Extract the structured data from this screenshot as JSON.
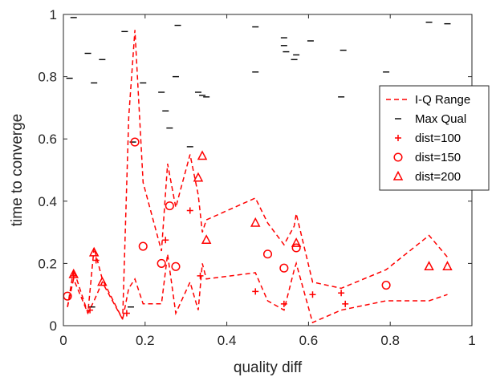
{
  "chart_data": {
    "type": "scatter",
    "title": "",
    "xlabel": "quality diff",
    "ylabel": "time to converge",
    "xlim": [
      0,
      1
    ],
    "ylim": [
      0,
      1
    ],
    "x_ticks": [
      "0",
      "0.2",
      "0.4",
      "0.6",
      "0.8",
      "1"
    ],
    "y_ticks": [
      "0",
      "0.2",
      "0.4",
      "0.6",
      "0.8",
      "1"
    ],
    "grid": false,
    "legend_position": "right",
    "colors": {
      "red": "#ff0000",
      "black": "#000000",
      "axis": "#262626"
    },
    "series": [
      {
        "name": "I-Q Range",
        "style": "dashed-line",
        "color": "#ff0000",
        "lines": [
          {
            "x": [
              0.01,
              0.025,
              0.06,
              0.075,
              0.095,
              0.145,
              0.16,
              0.175,
              0.195,
              0.24,
              0.255,
              0.275,
              0.31,
              0.33,
              0.34,
              0.35,
              0.47,
              0.5,
              0.54,
              0.565,
              0.57,
              0.61,
              0.68,
              0.79,
              0.895,
              0.94
            ],
            "y": [
              0.06,
              0.18,
              0.04,
              0.25,
              0.15,
              0.02,
              0.67,
              0.95,
              0.46,
              0.24,
              0.52,
              0.38,
              0.55,
              0.42,
              0.3,
              0.34,
              0.41,
              0.33,
              0.26,
              0.32,
              0.36,
              0.14,
              0.12,
              0.18,
              0.29,
              0.22
            ]
          },
          {
            "x": [
              0.01,
              0.025,
              0.06,
              0.075,
              0.095,
              0.145,
              0.16,
              0.175,
              0.195,
              0.24,
              0.255,
              0.275,
              0.31,
              0.33,
              0.34,
              0.35,
              0.47,
              0.5,
              0.54,
              0.565,
              0.57,
              0.61,
              0.68,
              0.79,
              0.895,
              0.94
            ],
            "y": [
              0.06,
              0.15,
              0.04,
              0.08,
              0.14,
              0.02,
              0.12,
              0.15,
              0.07,
              0.07,
              0.23,
              0.04,
              0.14,
              0.05,
              0.2,
              0.15,
              0.17,
              0.08,
              0.05,
              0.18,
              0.2,
              0.01,
              0.05,
              0.08,
              0.08,
              0.1
            ]
          }
        ]
      },
      {
        "name": "Max Qual",
        "marker": "hline",
        "color": "#000000",
        "x": [
          0.015,
          0.025,
          0.06,
          0.07,
          0.075,
          0.095,
          0.15,
          0.165,
          0.17,
          0.195,
          0.24,
          0.25,
          0.26,
          0.275,
          0.28,
          0.31,
          0.33,
          0.34,
          0.35,
          0.47,
          0.47,
          0.54,
          0.54,
          0.545,
          0.565,
          0.57,
          0.605,
          0.68,
          0.685,
          0.79,
          0.895,
          0.94
        ],
        "y": [
          0.795,
          0.99,
          0.875,
          0.06,
          0.78,
          0.855,
          0.945,
          0.06,
          0.59,
          0.78,
          0.75,
          0.69,
          0.635,
          0.8,
          0.965,
          0.575,
          0.75,
          0.74,
          0.735,
          0.96,
          0.815,
          0.9,
          0.925,
          0.88,
          0.855,
          0.87,
          0.915,
          0.735,
          0.885,
          0.815,
          0.975,
          0.97
        ]
      },
      {
        "name": "dist=100",
        "marker": "plus",
        "color": "#ff0000",
        "x": [
          0.025,
          0.065,
          0.08,
          0.155,
          0.25,
          0.31,
          0.335,
          0.47,
          0.54,
          0.61,
          0.68,
          0.69
        ],
        "y": [
          0.16,
          0.05,
          0.21,
          0.04,
          0.275,
          0.37,
          0.16,
          0.11,
          0.07,
          0.1,
          0.105,
          0.07
        ]
      },
      {
        "name": "dist=150",
        "marker": "circle",
        "color": "#ff0000",
        "x": [
          0.01,
          0.175,
          0.195,
          0.24,
          0.26,
          0.275,
          0.5,
          0.54,
          0.57,
          0.79
        ],
        "y": [
          0.095,
          0.59,
          0.255,
          0.2,
          0.385,
          0.19,
          0.23,
          0.185,
          0.25,
          0.13
        ]
      },
      {
        "name": "dist=200",
        "marker": "triangle",
        "color": "#ff0000",
        "x": [
          0.025,
          0.075,
          0.095,
          0.33,
          0.34,
          0.35,
          0.47,
          0.57,
          0.895,
          0.94
        ],
        "y": [
          0.165,
          0.235,
          0.14,
          0.475,
          0.545,
          0.275,
          0.33,
          0.265,
          0.19,
          0.19
        ]
      }
    ]
  }
}
